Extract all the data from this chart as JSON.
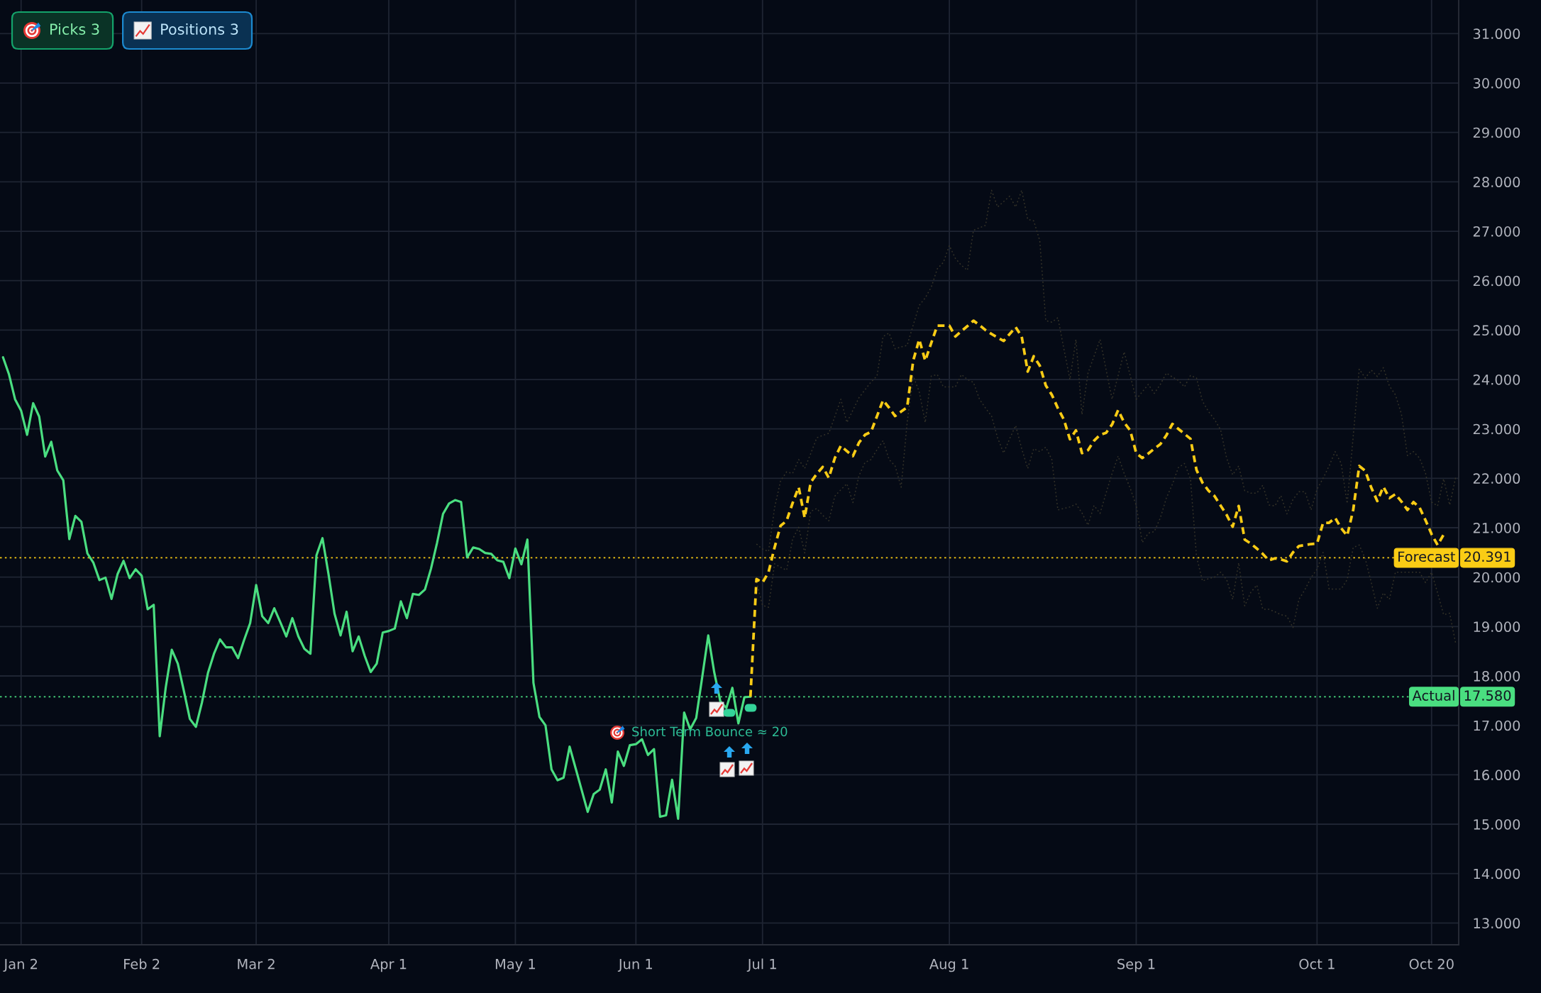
{
  "chart_data": {
    "type": "line",
    "categories": [
      null,
      null,
      null,
      "Jan 2",
      null,
      null,
      null,
      null,
      null,
      null,
      null,
      null,
      null,
      null,
      null,
      null,
      null,
      null,
      null,
      null,
      null,
      null,
      null,
      "Feb 2",
      null,
      null,
      null,
      null,
      null,
      null,
      null,
      null,
      null,
      null,
      null,
      null,
      null,
      null,
      null,
      null,
      null,
      null,
      "Mar 2",
      null,
      null,
      null,
      null,
      null,
      null,
      null,
      null,
      null,
      null,
      null,
      null,
      null,
      null,
      null,
      null,
      null,
      null,
      null,
      null,
      null,
      "Apr 1",
      null,
      null,
      null,
      null,
      null,
      null,
      null,
      null,
      null,
      null,
      null,
      null,
      null,
      null,
      null,
      null,
      null,
      null,
      null,
      null,
      "May 1",
      null,
      null,
      null,
      null,
      null,
      null,
      null,
      null,
      null,
      null,
      null,
      null,
      null,
      null,
      null,
      null,
      null,
      null,
      null,
      "Jun 1",
      null,
      null,
      null,
      null,
      null,
      null,
      null,
      null,
      null,
      null,
      null,
      null,
      null,
      null,
      null,
      null,
      null,
      null,
      null,
      null,
      "Jul 1",
      null,
      null,
      null,
      null,
      null,
      null,
      null,
      null,
      null,
      null,
      null,
      null,
      null,
      null,
      null,
      null,
      null,
      null,
      null,
      null,
      null,
      null,
      null,
      null,
      null,
      null,
      null,
      null,
      null,
      null,
      "Aug 1",
      null,
      null,
      null,
      null,
      null,
      null,
      null,
      null,
      null,
      null,
      null,
      null,
      null,
      null,
      null,
      null,
      null,
      null,
      null,
      null,
      null,
      null,
      null,
      null,
      null,
      null,
      null,
      null,
      null,
      null,
      "Sep 1",
      null,
      null,
      null,
      null,
      null,
      null,
      null,
      null,
      null,
      null,
      null,
      null,
      null,
      null,
      null,
      null,
      null,
      null,
      null,
      null,
      null,
      null,
      null,
      null,
      null,
      null,
      null,
      null,
      null,
      "Oct 1",
      null,
      null,
      null,
      null,
      null,
      null,
      null,
      null,
      null,
      null,
      null,
      null,
      null,
      null,
      null,
      null,
      null,
      null,
      "Oct 20",
      null,
      null,
      null,
      null
    ],
    "series": [
      {
        "color": "#363429",
        "line_style": "dotted",
        "values": [
          null,
          null,
          null,
          null,
          null,
          null,
          null,
          null,
          null,
          null,
          null,
          null,
          null,
          null,
          null,
          null,
          null,
          null,
          null,
          null,
          null,
          null,
          null,
          null,
          null,
          null,
          null,
          null,
          null,
          null,
          null,
          null,
          null,
          null,
          null,
          null,
          null,
          null,
          null,
          null,
          null,
          null,
          null,
          null,
          null,
          null,
          null,
          null,
          null,
          null,
          null,
          null,
          null,
          null,
          null,
          null,
          null,
          null,
          null,
          null,
          null,
          null,
          null,
          null,
          null,
          null,
          null,
          null,
          null,
          null,
          null,
          null,
          null,
          null,
          null,
          null,
          null,
          null,
          null,
          null,
          null,
          null,
          null,
          null,
          null,
          null,
          null,
          null,
          null,
          null,
          null,
          null,
          null,
          null,
          null,
          null,
          null,
          null,
          null,
          null,
          null,
          null,
          null,
          null,
          null,
          null,
          null,
          null,
          null,
          null,
          null,
          null,
          null,
          null,
          null,
          null,
          null,
          null,
          null,
          null,
          null,
          null,
          null,
          null,
          null,
          20.67,
          20.57,
          20.52,
          21.4,
          21.95,
          22.13,
          22.1,
          22.38,
          22.2,
          22.5,
          22.82,
          22.87,
          22.91,
          23.25,
          23.6,
          23.13,
          23.38,
          23.63,
          23.79,
          23.95,
          24.07,
          24.87,
          24.94,
          24.62,
          24.66,
          24.69,
          25.1,
          25.5,
          25.65,
          25.87,
          26.24,
          26.37,
          26.71,
          26.45,
          26.31,
          26.21,
          27.02,
          27.07,
          27.12,
          27.83,
          27.49,
          27.6,
          27.71,
          27.49,
          27.83,
          27.24,
          27.21,
          26.81,
          25.19,
          25.16,
          25.25,
          24.62,
          24.0,
          24.81,
          23.29,
          24.13,
          24.47,
          24.81,
          24.2,
          23.6,
          24.08,
          24.56,
          24.08,
          23.6,
          23.75,
          23.9,
          23.72,
          23.9,
          24.13,
          24.05,
          23.98,
          23.85,
          24.08,
          24.03,
          23.56,
          23.35,
          23.19,
          22.98,
          22.41,
          22.07,
          22.25,
          21.75,
          21.7,
          21.7,
          21.86,
          21.46,
          21.44,
          21.65,
          21.28,
          21.57,
          21.73,
          21.73,
          21.36,
          21.78,
          22.0,
          22.25,
          22.54,
          22.3,
          21.49,
          22.85,
          24.21,
          24.03,
          24.19,
          24.06,
          24.24,
          23.87,
          23.69,
          23.3,
          22.46,
          22.54,
          22.41,
          22.1,
          21.52,
          21.44,
          21.99,
          21.46,
          22.02
        ]
      },
      {
        "color": "#363429",
        "line_style": "dotted",
        "values": [
          null,
          null,
          null,
          null,
          null,
          null,
          null,
          null,
          null,
          null,
          null,
          null,
          null,
          null,
          null,
          null,
          null,
          null,
          null,
          null,
          null,
          null,
          null,
          null,
          null,
          null,
          null,
          null,
          null,
          null,
          null,
          null,
          null,
          null,
          null,
          null,
          null,
          null,
          null,
          null,
          null,
          null,
          null,
          null,
          null,
          null,
          null,
          null,
          null,
          null,
          null,
          null,
          null,
          null,
          null,
          null,
          null,
          null,
          null,
          null,
          null,
          null,
          null,
          null,
          null,
          null,
          null,
          null,
          null,
          null,
          null,
          null,
          null,
          null,
          null,
          null,
          null,
          null,
          null,
          null,
          null,
          null,
          null,
          null,
          null,
          null,
          null,
          null,
          null,
          null,
          null,
          null,
          null,
          null,
          null,
          null,
          null,
          null,
          null,
          null,
          null,
          null,
          null,
          null,
          null,
          null,
          null,
          null,
          null,
          null,
          null,
          null,
          null,
          null,
          null,
          null,
          null,
          null,
          null,
          null,
          null,
          null,
          null,
          null,
          null,
          19.9,
          19.43,
          19.39,
          20.27,
          20.2,
          20.14,
          20.77,
          21.01,
          20.49,
          21.33,
          21.39,
          21.25,
          21.14,
          21.64,
          21.77,
          21.89,
          21.51,
          22.05,
          22.32,
          22.38,
          22.58,
          22.76,
          22.38,
          22.25,
          21.82,
          23.13,
          24.07,
          23.75,
          23.13,
          24.07,
          24.1,
          23.85,
          23.85,
          23.85,
          24.1,
          24.0,
          23.94,
          23.6,
          23.42,
          23.26,
          22.82,
          22.51,
          22.8,
          23.07,
          22.6,
          22.2,
          22.6,
          22.54,
          22.63,
          22.38,
          21.36,
          21.39,
          21.42,
          21.48,
          21.3,
          21.05,
          21.45,
          21.29,
          21.7,
          22.1,
          22.45,
          22.1,
          21.8,
          21.45,
          20.7,
          20.89,
          20.92,
          21.2,
          21.6,
          21.88,
          22.22,
          22.3,
          21.99,
          20.42,
          19.92,
          19.97,
          20.0,
          20.1,
          19.95,
          19.55,
          20.29,
          19.42,
          19.69,
          19.84,
          19.35,
          19.35,
          19.3,
          19.24,
          19.21,
          18.98,
          19.55,
          19.75,
          19.99,
          20.16,
          20.5,
          19.76,
          19.76,
          19.76,
          19.95,
          20.6,
          20.65,
          20.37,
          19.89,
          19.37,
          19.68,
          19.55,
          20.1,
          20.1,
          20.1,
          20.1,
          20.1,
          19.89,
          20.1,
          19.68,
          19.24,
          19.27,
          18.66
        ]
      },
      {
        "color": "#4ade80",
        "line_style": "solid",
        "values": [
          24.45,
          24.1,
          23.6,
          23.37,
          22.88,
          23.52,
          23.25,
          22.44,
          22.74,
          22.16,
          21.96,
          20.77,
          21.24,
          21.12,
          20.48,
          20.29,
          19.94,
          19.99,
          19.56,
          20.06,
          20.33,
          19.98,
          20.16,
          20.03,
          19.35,
          19.44,
          16.78,
          17.77,
          18.53,
          18.25,
          17.7,
          17.13,
          16.97,
          17.46,
          18.06,
          18.45,
          18.74,
          18.58,
          18.58,
          18.36,
          18.73,
          19.07,
          19.84,
          19.21,
          19.07,
          19.37,
          19.09,
          18.8,
          19.17,
          18.8,
          18.55,
          18.45,
          20.44,
          20.79,
          20.06,
          19.26,
          18.82,
          19.3,
          18.5,
          18.8,
          18.41,
          18.08,
          18.25,
          18.88,
          18.91,
          18.96,
          19.51,
          19.17,
          19.66,
          19.64,
          19.75,
          20.17,
          20.69,
          21.28,
          21.49,
          21.56,
          21.52,
          20.4,
          20.6,
          20.57,
          20.49,
          20.47,
          20.34,
          20.31,
          19.98,
          20.58,
          20.26,
          20.76,
          17.86,
          17.17,
          17.0,
          16.11,
          15.89,
          15.94,
          16.57,
          16.13,
          15.69,
          15.25,
          15.61,
          15.7,
          16.11,
          15.44,
          16.47,
          16.18,
          16.6,
          16.62,
          16.72,
          16.4,
          16.52,
          15.15,
          15.18,
          15.9,
          15.11,
          17.26,
          16.92,
          17.15,
          17.98,
          18.82,
          18.07,
          17.49,
          17.35,
          17.76,
          17.04,
          17.57,
          17.58,
          null,
          null,
          null,
          null,
          null,
          null,
          null,
          null,
          null,
          null,
          null,
          null,
          null,
          null,
          null,
          null,
          null,
          null,
          null,
          null,
          null,
          null,
          null,
          null,
          null,
          null,
          null,
          null,
          null,
          null,
          null,
          null,
          null,
          null,
          null,
          null,
          null,
          null,
          null,
          null,
          null,
          null,
          null,
          null,
          null,
          null,
          null,
          null,
          null,
          null,
          null,
          null,
          null,
          null,
          null,
          null,
          null,
          null,
          null,
          null,
          null,
          null,
          null,
          null,
          null,
          null,
          null,
          null,
          null,
          null,
          null,
          null,
          null,
          null,
          null,
          null,
          null,
          null,
          null,
          null,
          null,
          null,
          null,
          null,
          null,
          null,
          null,
          null,
          null,
          null,
          null,
          null,
          null,
          null,
          null,
          null,
          null,
          null,
          null,
          null,
          null,
          null,
          null,
          null,
          null,
          null,
          null,
          null,
          null,
          null,
          null,
          null,
          null,
          null,
          null,
          null,
          null
        ]
      },
      {
        "color": "#facc15",
        "line_style": "dashed",
        "values": [
          null,
          null,
          null,
          null,
          null,
          null,
          null,
          null,
          null,
          null,
          null,
          null,
          null,
          null,
          null,
          null,
          null,
          null,
          null,
          null,
          null,
          null,
          null,
          null,
          null,
          null,
          null,
          null,
          null,
          null,
          null,
          null,
          null,
          null,
          null,
          null,
          null,
          null,
          null,
          null,
          null,
          null,
          null,
          null,
          null,
          null,
          null,
          null,
          null,
          null,
          null,
          null,
          null,
          null,
          null,
          null,
          null,
          null,
          null,
          null,
          null,
          null,
          null,
          null,
          null,
          null,
          null,
          null,
          null,
          null,
          null,
          null,
          null,
          null,
          null,
          null,
          null,
          null,
          null,
          null,
          null,
          null,
          null,
          null,
          null,
          null,
          null,
          null,
          null,
          null,
          null,
          null,
          null,
          null,
          null,
          null,
          null,
          null,
          null,
          null,
          null,
          null,
          null,
          null,
          null,
          null,
          null,
          null,
          null,
          null,
          null,
          null,
          null,
          null,
          null,
          null,
          null,
          null,
          null,
          null,
          null,
          null,
          null,
          null,
          17.58,
          19.96,
          19.89,
          20.1,
          20.6,
          21.04,
          21.14,
          21.5,
          21.82,
          21.2,
          21.92,
          22.09,
          22.23,
          22.01,
          22.41,
          22.66,
          22.55,
          22.45,
          22.72,
          22.88,
          22.94,
          23.26,
          23.58,
          23.43,
          23.26,
          23.35,
          23.44,
          24.38,
          24.81,
          24.38,
          24.74,
          25.09,
          25.09,
          25.09,
          24.87,
          24.98,
          25.08,
          25.19,
          25.1,
          25.0,
          24.92,
          24.85,
          24.78,
          24.92,
          25.06,
          24.87,
          24.16,
          24.47,
          24.28,
          23.88,
          23.69,
          23.42,
          23.19,
          22.79,
          22.97,
          22.51,
          22.57,
          22.76,
          22.88,
          22.92,
          23.09,
          23.38,
          23.13,
          22.97,
          22.51,
          22.41,
          22.5,
          22.6,
          22.69,
          22.87,
          23.1,
          23.0,
          22.9,
          22.8,
          22.17,
          21.91,
          21.75,
          21.64,
          21.45,
          21.26,
          21.02,
          21.44,
          20.76,
          20.68,
          20.58,
          20.47,
          20.34,
          20.38,
          20.36,
          20.32,
          20.5,
          20.63,
          20.65,
          20.67,
          20.68,
          21.1,
          21.1,
          21.2,
          20.99,
          20.84,
          21.36,
          22.25,
          22.15,
          21.81,
          21.54,
          21.83,
          21.6,
          21.68,
          21.53,
          21.36,
          21.52,
          21.41,
          21.15,
          20.87,
          20.65,
          20.86,
          null,
          null
        ]
      }
    ],
    "ylim": [
      12.56,
      31.68
    ],
    "yticks": [
      {
        "value": 13,
        "label": "13.000"
      },
      {
        "value": 14,
        "label": "14.000"
      },
      {
        "value": 15,
        "label": "15.000"
      },
      {
        "value": 16,
        "label": "16.000"
      },
      {
        "value": 17,
        "label": "17.000"
      },
      {
        "value": 18,
        "label": "18.000"
      },
      {
        "value": 19,
        "label": "19.000"
      },
      {
        "value": 20,
        "label": "20.000"
      },
      {
        "value": 21,
        "label": "21.000"
      },
      {
        "value": 22,
        "label": "22.000"
      },
      {
        "value": 23,
        "label": "23.000"
      },
      {
        "value": 24,
        "label": "24.000"
      },
      {
        "value": 25,
        "label": "25.000"
      },
      {
        "value": 26,
        "label": "26.000"
      },
      {
        "value": 27,
        "label": "27.000"
      },
      {
        "value": 28,
        "label": "28.000"
      },
      {
        "value": 29,
        "label": "29.000"
      },
      {
        "value": 30,
        "label": "30.000"
      },
      {
        "value": 31,
        "label": "31.000"
      }
    ],
    "grid": true,
    "ref_lines": [
      {
        "axis": "y",
        "value": 20.391,
        "label": "Forecast",
        "color": "#facc15",
        "line_style": "dotted"
      },
      {
        "axis": "y",
        "value": 17.58,
        "label": "Actual",
        "color": "#4ade80",
        "line_style": "dotted"
      }
    ],
    "annotations": [
      "Picks 3",
      "Positions 3",
      "Short Term Bounce ≈ 20",
      "20.391",
      "17.580"
    ]
  }
}
